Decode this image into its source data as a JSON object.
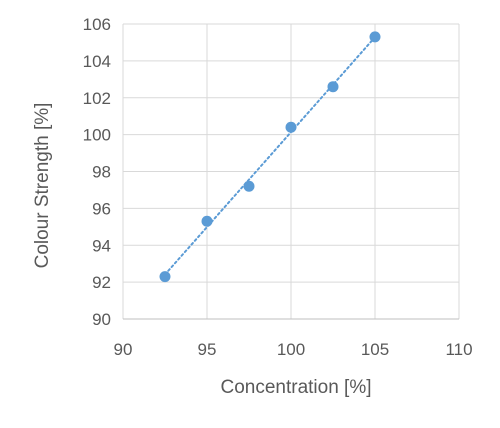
{
  "chart_data": {
    "type": "scatter",
    "title": "",
    "xlabel": "Concentration [%]",
    "ylabel": "Colour Strength [%]",
    "xlim": [
      90,
      110
    ],
    "ylim": [
      90,
      106
    ],
    "xticks": [
      "90",
      "95",
      "100",
      "105",
      "110"
    ],
    "yticks": [
      "90",
      "92",
      "94",
      "96",
      "98",
      "100",
      "102",
      "104",
      "106"
    ],
    "grid": true,
    "legend": "none",
    "trendline": "linear, dotted",
    "series": [
      {
        "x": [
          92.5,
          95,
          97.5,
          100,
          102.5,
          105
        ],
        "y": [
          92.3,
          95.3,
          97.2,
          100.4,
          102.6,
          105.3
        ]
      }
    ],
    "colors": {
      "marker": "#5b9bd5",
      "trendline": "#5b9bd5",
      "grid": "#d9d9d9",
      "text": "#595959"
    }
  }
}
